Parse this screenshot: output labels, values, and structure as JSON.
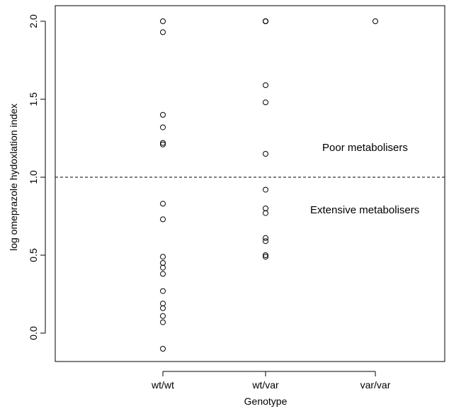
{
  "chart_data": {
    "type": "scatter",
    "title": "",
    "xlabel": "Genotype",
    "ylabel": "log omeprazole hydoxlation index",
    "categories": [
      "wt/wt",
      "wt/var",
      "var/var"
    ],
    "ylim": [
      -0.19,
      2.05
    ],
    "y_ticks": [
      "0.0",
      "0.5",
      "1.0",
      "1.5",
      "2.0"
    ],
    "grid": false,
    "legend": "none",
    "threshold": {
      "y": 1.0,
      "style": "dashed"
    },
    "annotations": [
      {
        "text": "Poor metabolisers",
        "y": 1.19
      },
      {
        "text": "Extensive metabolisers",
        "y": 0.79
      }
    ],
    "series": [
      {
        "category": "wt/wt",
        "values": [
          2.0,
          1.93,
          1.4,
          1.32,
          1.22,
          1.21,
          0.83,
          0.73,
          0.49,
          0.45,
          0.42,
          0.38,
          0.27,
          0.19,
          0.16,
          0.11,
          0.07,
          -0.1
        ]
      },
      {
        "category": "wt/var",
        "values": [
          2.0,
          2.0,
          2.0,
          1.59,
          1.48,
          1.15,
          0.92,
          0.8,
          0.77,
          0.61,
          0.59,
          0.5,
          0.49
        ]
      },
      {
        "category": "var/var",
        "values": [
          2.0
        ]
      }
    ],
    "colors": {
      "points": "#000000",
      "frame": "#000000",
      "background": "#ffffff"
    }
  }
}
